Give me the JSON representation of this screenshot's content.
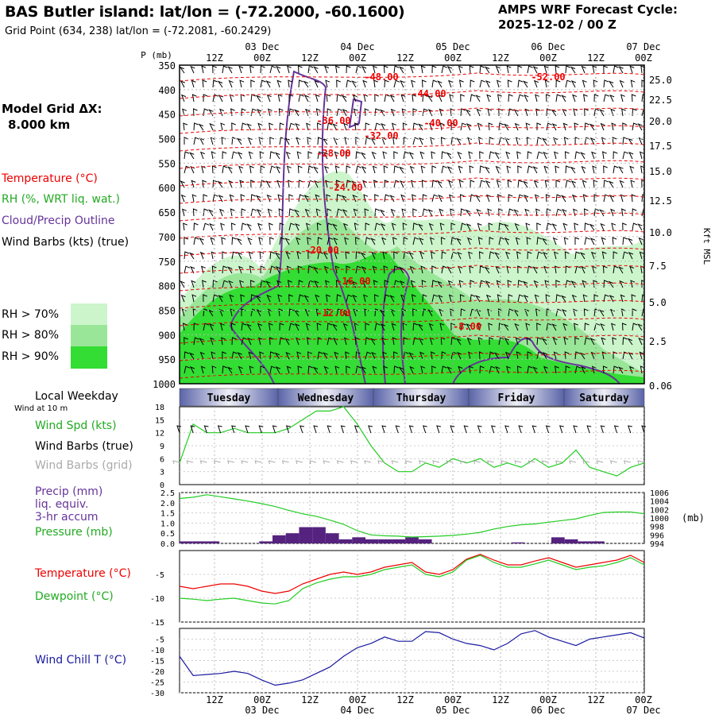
{
  "header": {
    "title": "BAS Butler island:  lat/lon = (-72.2000, -60.1600)",
    "grid_point": "Grid Point (634, 238) lat/lon = (-72.2081, -60.2429)",
    "cycle_line1": "AMPS WRF Forecast Cycle:",
    "cycle_line2": "2025-12-02 / 00  Z"
  },
  "side": {
    "model_grid": "Model Grid ΔX:",
    "model_dx": "8.000 km",
    "temperature": "Temperature (°C)",
    "rh": "RH (%, WRT liq. wat.)",
    "cloud": "Cloud/Precip Outline",
    "wind_barbs": "Wind Barbs (kts) (true)",
    "rh_legend": [
      "RH > 70%",
      "RH > 80%",
      "RH > 90%"
    ],
    "local_weekday": "Local Weekday",
    "wind_10m": "Wind at 10 m",
    "wind_spd": "Wind Spd (kts)",
    "wind_barbs_true": "Wind Barbs (true)",
    "wind_barbs_grid": "Wind Barbs (grid)",
    "precip": "Precip (mm)",
    "liq": "liq. equiv.",
    "accum": "3-hr accum",
    "pressure": "Pressure (mb)",
    "temp2": "Temperature (°C)",
    "dewpoint": "Dewpoint (°C)",
    "windchill": "Wind Chill T (°C)"
  },
  "colors": {
    "temperature": "#ee0000",
    "rh": "#22cc22",
    "cloud": "#663399",
    "precip_bar": "#55237f",
    "windchill": "#1a1aa0",
    "grid_barbs": "#aaaaaa",
    "rh70": "#ccf5cc",
    "rh80": "#99e699",
    "rh90": "#33dd33"
  },
  "chart_data": {
    "type": "meteogram",
    "time_axis": {
      "top_ticks": [
        "12Z",
        "00Z",
        "12Z",
        "00Z",
        "12Z",
        "00Z",
        "12Z",
        "00Z",
        "12Z",
        "00Z"
      ],
      "date_labels": [
        "03 Dec",
        "04 Dec",
        "05 Dec",
        "06 Dec",
        "07 Dec"
      ],
      "weekdays": [
        "Tuesday",
        "Wednesday",
        "Thursday",
        "Friday",
        "Saturday"
      ]
    },
    "profile": {
      "pressure_label": "P (mb)",
      "pressure_ticks": [
        350,
        400,
        450,
        500,
        550,
        600,
        650,
        700,
        750,
        800,
        850,
        900,
        950,
        1000
      ],
      "height_ticks": [
        "25.0",
        "22.5",
        "20.0",
        "17.5",
        "15.0",
        "12.5",
        "10.0",
        "7.5",
        "5.0",
        "2.5",
        "0.06"
      ],
      "height_label": "Kft MSL",
      "temperature_labels": [
        "-48.00",
        "-52.00",
        "-44.00",
        "-36.00",
        "-40.00",
        "-32.00",
        "-28.00",
        "-24.00",
        "-20.00",
        "-16.00",
        "-12.00",
        "-8.00"
      ]
    },
    "wind": {
      "y_ticks": [
        18,
        15,
        12,
        9,
        6,
        3,
        0
      ],
      "speed_kts": [
        5,
        14,
        12,
        12,
        13,
        12,
        12,
        12,
        13,
        15,
        17,
        17,
        18,
        14,
        9,
        5,
        3,
        3,
        5,
        4,
        6,
        5,
        6,
        4,
        5,
        4,
        6,
        4,
        5,
        8,
        4,
        3,
        2,
        4,
        5
      ]
    },
    "precip_pressure": {
      "precip_ticks": [
        "2.5",
        "2.0",
        "1.5",
        "1.0",
        "0.5",
        "0.0"
      ],
      "pressure_ticks": [
        1006,
        1004,
        1002,
        1000,
        998,
        996,
        994
      ],
      "pressure_unit": "(mb)",
      "precip_mm": [
        0.1,
        0.1,
        0.1,
        0,
        0,
        0,
        0.1,
        0.4,
        0.5,
        0.8,
        0.8,
        0.5,
        0.2,
        0.3,
        0.2,
        0.2,
        0.2,
        0.3,
        0.2,
        0,
        0,
        0,
        0,
        0,
        0,
        0.05,
        0,
        0,
        0.3,
        0.2,
        0.1,
        0.1,
        0,
        0,
        0
      ],
      "pressure_mb": [
        1004.6,
        1004.9,
        1005.5,
        1005,
        1004.5,
        1004,
        1003.4,
        1002.7,
        1001.8,
        1001,
        1000.4,
        999.5,
        998.5,
        997,
        996,
        995.8,
        995.7,
        995.5,
        995.6,
        995.7,
        995.9,
        996.2,
        996.6,
        997.4,
        998,
        998.4,
        998.6,
        999,
        999.4,
        999.8,
        1000.6,
        1001.3,
        1001.4,
        1001.4,
        1001
      ]
    },
    "temperature_dewpoint": {
      "y_ticks": [
        -5,
        -10,
        -15
      ],
      "temperature_c": [
        -7.5,
        -8,
        -7.5,
        -7,
        -7,
        -7.5,
        -8.5,
        -9,
        -8.5,
        -7,
        -6,
        -5,
        -4.5,
        -5,
        -4.5,
        -3.5,
        -3,
        -2.5,
        -4.5,
        -5,
        -4,
        -1.8,
        -0.8,
        -2,
        -3,
        -3,
        -2.2,
        -1.5,
        -2.5,
        -3.5,
        -3,
        -2.5,
        -2,
        -1,
        -2.5
      ],
      "dewpoint_c": [
        -10,
        -10.2,
        -10.5,
        -10.2,
        -10,
        -10.5,
        -11,
        -11.2,
        -10.5,
        -8,
        -6.8,
        -6,
        -5.5,
        -5.5,
        -5,
        -4,
        -3.5,
        -3,
        -5,
        -5.5,
        -4.5,
        -2,
        -1,
        -2.5,
        -3.5,
        -3.5,
        -2.8,
        -2,
        -3,
        -4,
        -3.5,
        -3.2,
        -2.5,
        -1.5,
        -3
      ]
    },
    "windchill": {
      "y_ticks": [
        -5,
        -10,
        -15,
        -20,
        -25,
        -30
      ],
      "windchill_c": [
        -13,
        -22,
        -21.5,
        -21,
        -20,
        -21,
        -24,
        -26.5,
        -25.5,
        -24,
        -21,
        -18,
        -13,
        -9,
        -7,
        -4,
        -6,
        -6,
        -1.5,
        -2,
        -5,
        -7,
        -8,
        -10,
        -7,
        -2.5,
        -1,
        -4,
        -6,
        -8,
        -5,
        -4,
        -3,
        -2,
        -4.5
      ]
    }
  }
}
